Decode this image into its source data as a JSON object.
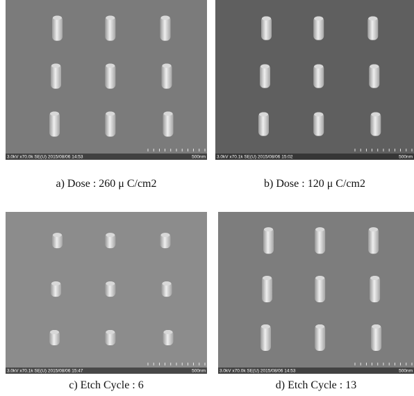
{
  "panels": [
    {
      "caption": "a) Dose : 260 μ C/cm2",
      "info": "3.0kV x70.0k SE(U) 2015/08/06 14:53",
      "scale": "500nm"
    },
    {
      "caption": "b) Dose : 120 μ C/cm2",
      "info": "3.0kV x70.1k SE(U) 2015/08/06 15:02",
      "scale": "500nm"
    },
    {
      "caption": "c) Etch Cycle : 6",
      "info": "3.0kV x70.1k SE(U) 2015/08/06 15:47",
      "scale": "500nm"
    },
    {
      "caption": "d) Etch Cycle : 13",
      "info": "3.0kV x70.0k SE(U) 2015/08/06 14:53",
      "scale": "500nm"
    }
  ]
}
